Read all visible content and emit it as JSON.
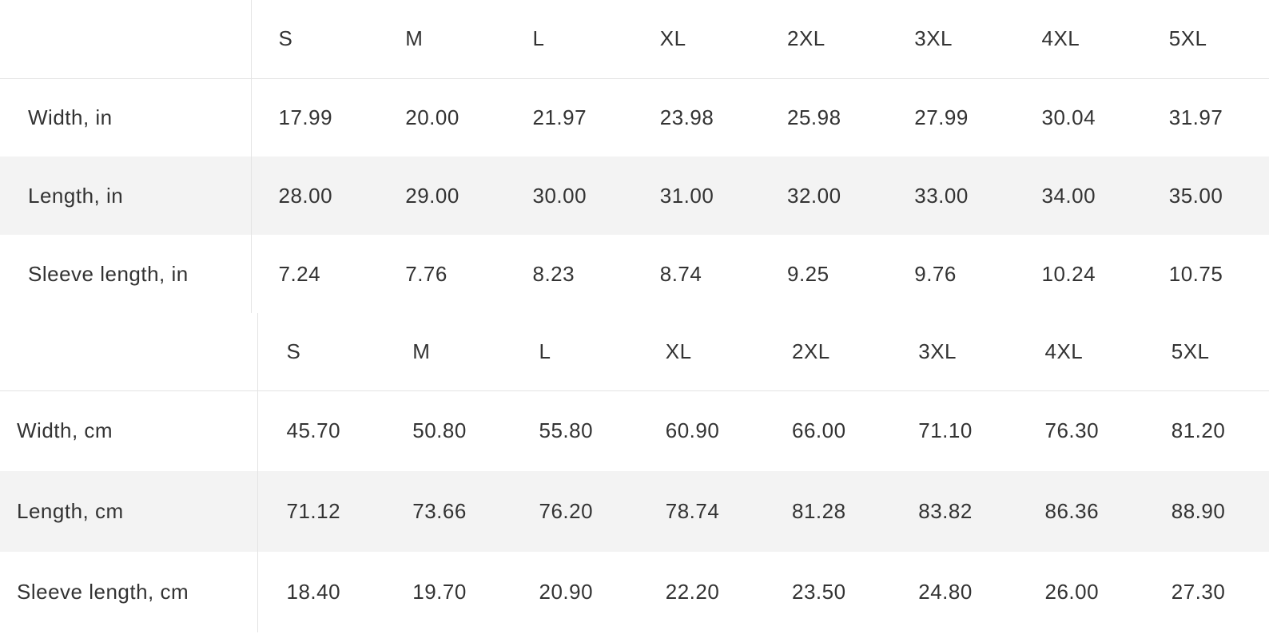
{
  "tables": [
    {
      "id": "inches",
      "headers": [
        "S",
        "M",
        "L",
        "XL",
        "2XL",
        "3XL",
        "4XL",
        "5XL"
      ],
      "rows": [
        {
          "label": "Width, in",
          "values": [
            "17.99",
            "20.00",
            "21.97",
            "23.98",
            "25.98",
            "27.99",
            "30.04",
            "31.97"
          ]
        },
        {
          "label": "Length, in",
          "values": [
            "28.00",
            "29.00",
            "30.00",
            "31.00",
            "32.00",
            "33.00",
            "34.00",
            "35.00"
          ]
        },
        {
          "label": "Sleeve length, in",
          "values": [
            "7.24",
            "7.76",
            "8.23",
            "8.74",
            "9.25",
            "9.76",
            "10.24",
            "10.75"
          ]
        }
      ]
    },
    {
      "id": "centimeters",
      "headers": [
        "S",
        "M",
        "L",
        "XL",
        "2XL",
        "3XL",
        "4XL",
        "5XL"
      ],
      "rows": [
        {
          "label": "Width, cm",
          "values": [
            "45.70",
            "50.80",
            "55.80",
            "60.90",
            "66.00",
            "71.10",
            "76.30",
            "81.20"
          ]
        },
        {
          "label": "Length, cm",
          "values": [
            "71.12",
            "73.66",
            "76.20",
            "78.74",
            "81.28",
            "83.82",
            "86.36",
            "88.90"
          ]
        },
        {
          "label": "Sleeve length, cm",
          "values": [
            "18.40",
            "19.70",
            "20.90",
            "22.20",
            "23.50",
            "24.80",
            "26.00",
            "27.30"
          ]
        }
      ]
    }
  ]
}
